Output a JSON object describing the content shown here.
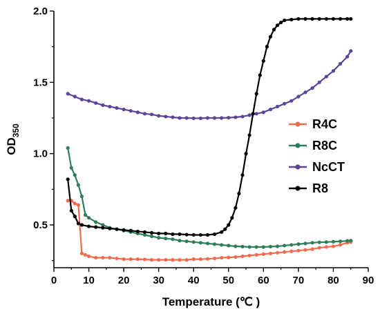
{
  "chart_data": {
    "type": "line",
    "xlabel": "Temperature (℃ )",
    "ylabel": "OD",
    "ylabel_sub": "350",
    "xlim": [
      0,
      90
    ],
    "ylim": [
      0.2,
      2.0
    ],
    "xticks": [
      "0",
      "10",
      "20",
      "30",
      "40",
      "50",
      "60",
      "70",
      "80",
      "90"
    ],
    "yticks": [
      "0.5",
      "1.0",
      "1.5",
      "2.0"
    ],
    "grid": false,
    "legend_position": "right",
    "series": [
      {
        "name": "R4C",
        "color": "#f26b4f",
        "x": [
          4,
          5,
          6,
          7,
          8,
          9,
          10,
          12,
          14,
          16,
          18,
          20,
          22,
          24,
          26,
          28,
          30,
          32,
          34,
          36,
          38,
          40,
          42,
          44,
          46,
          48,
          50,
          52,
          54,
          56,
          58,
          60,
          62,
          64,
          66,
          68,
          70,
          72,
          74,
          76,
          78,
          80,
          82,
          84,
          85
        ],
        "y": [
          0.67,
          0.67,
          0.65,
          0.64,
          0.3,
          0.29,
          0.28,
          0.27,
          0.27,
          0.27,
          0.265,
          0.26,
          0.26,
          0.26,
          0.258,
          0.255,
          0.255,
          0.255,
          0.255,
          0.255,
          0.255,
          0.26,
          0.26,
          0.262,
          0.265,
          0.27,
          0.272,
          0.275,
          0.28,
          0.285,
          0.29,
          0.295,
          0.3,
          0.305,
          0.31,
          0.315,
          0.32,
          0.325,
          0.33,
          0.34,
          0.345,
          0.35,
          0.36,
          0.375,
          0.38
        ]
      },
      {
        "name": "R8C",
        "color": "#2e7d5b",
        "x": [
          4,
          5,
          6,
          7,
          8,
          9,
          10,
          12,
          14,
          16,
          18,
          20,
          22,
          24,
          26,
          28,
          30,
          32,
          34,
          36,
          38,
          40,
          42,
          44,
          46,
          48,
          50,
          52,
          54,
          56,
          58,
          60,
          62,
          64,
          66,
          68,
          70,
          72,
          74,
          76,
          78,
          80,
          82,
          84,
          85
        ],
        "y": [
          1.04,
          0.9,
          0.85,
          0.78,
          0.7,
          0.57,
          0.55,
          0.52,
          0.5,
          0.48,
          0.47,
          0.46,
          0.45,
          0.44,
          0.43,
          0.42,
          0.41,
          0.405,
          0.4,
          0.39,
          0.385,
          0.38,
          0.375,
          0.37,
          0.365,
          0.36,
          0.355,
          0.35,
          0.348,
          0.345,
          0.345,
          0.345,
          0.348,
          0.35,
          0.355,
          0.36,
          0.365,
          0.37,
          0.375,
          0.378,
          0.38,
          0.382,
          0.385,
          0.388,
          0.39
        ]
      },
      {
        "name": "NcCT",
        "color": "#5b4596",
        "x": [
          4,
          6,
          8,
          10,
          12,
          14,
          16,
          18,
          20,
          22,
          24,
          26,
          28,
          30,
          32,
          34,
          36,
          38,
          40,
          42,
          44,
          46,
          48,
          50,
          52,
          54,
          56,
          58,
          60,
          62,
          64,
          66,
          68,
          70,
          72,
          74,
          76,
          78,
          80,
          82,
          84,
          85
        ],
        "y": [
          1.42,
          1.4,
          1.38,
          1.37,
          1.355,
          1.34,
          1.33,
          1.32,
          1.31,
          1.3,
          1.29,
          1.28,
          1.275,
          1.265,
          1.26,
          1.255,
          1.25,
          1.25,
          1.248,
          1.248,
          1.25,
          1.25,
          1.25,
          1.252,
          1.255,
          1.26,
          1.27,
          1.28,
          1.29,
          1.31,
          1.33,
          1.35,
          1.37,
          1.4,
          1.43,
          1.46,
          1.5,
          1.54,
          1.58,
          1.63,
          1.68,
          1.72
        ]
      },
      {
        "name": "R8",
        "color": "#000000",
        "x": [
          4,
          5,
          6,
          7,
          8,
          10,
          12,
          14,
          16,
          18,
          20,
          22,
          24,
          26,
          28,
          30,
          32,
          34,
          36,
          38,
          40,
          42,
          44,
          46,
          48,
          49,
          50,
          51,
          52,
          53,
          54,
          55,
          56,
          57,
          58,
          59,
          60,
          61,
          62,
          63,
          64,
          65,
          66,
          68,
          70,
          72,
          74,
          76,
          78,
          80,
          82,
          84,
          85
        ],
        "y": [
          0.82,
          0.6,
          0.56,
          0.51,
          0.5,
          0.49,
          0.485,
          0.48,
          0.475,
          0.47,
          0.465,
          0.46,
          0.455,
          0.45,
          0.445,
          0.44,
          0.44,
          0.435,
          0.435,
          0.432,
          0.43,
          0.43,
          0.43,
          0.435,
          0.45,
          0.47,
          0.5,
          0.55,
          0.62,
          0.72,
          0.85,
          1.0,
          1.13,
          1.28,
          1.42,
          1.55,
          1.65,
          1.75,
          1.82,
          1.87,
          1.9,
          1.92,
          1.935,
          1.94,
          1.945,
          1.945,
          1.945,
          1.945,
          1.945,
          1.945,
          1.945,
          1.945,
          1.945
        ]
      }
    ],
    "legend_order": [
      "R4C",
      "R8C",
      "NcCT",
      "R8"
    ]
  }
}
